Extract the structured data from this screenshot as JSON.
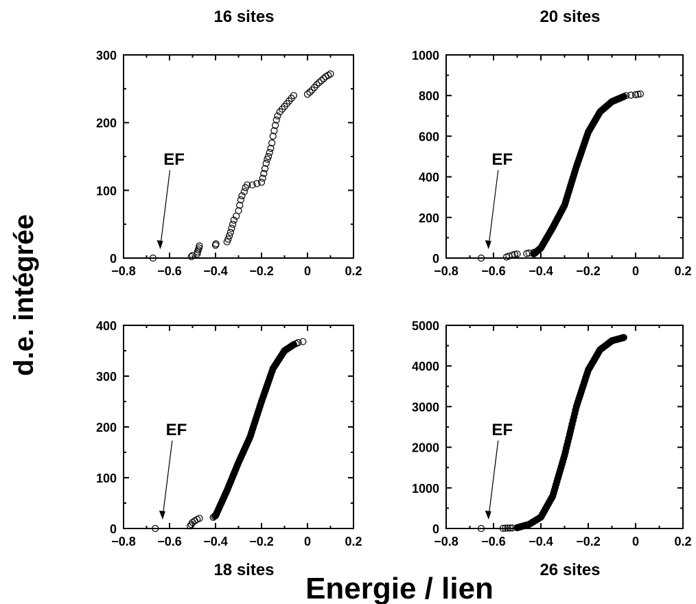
{
  "figure": {
    "ylabel": "d.e. intégrée",
    "xlabel": "Energie / lien"
  },
  "chart_data": [
    {
      "type": "scatter",
      "title": "16 sites",
      "xlim": [
        -0.8,
        0.2
      ],
      "ylim": [
        0,
        300
      ],
      "xticks": [
        "−0.8",
        "−0.6",
        "−0.4",
        "−0.2",
        "0",
        "0.2"
      ],
      "yticks": [
        "0",
        "100",
        "200",
        "300"
      ],
      "annotation": {
        "text": "EF",
        "x": -0.67,
        "y": 0
      },
      "points": [
        [
          -0.672,
          0
        ],
        [
          -0.505,
          2
        ],
        [
          -0.5,
          4
        ],
        [
          -0.48,
          6
        ],
        [
          -0.478,
          9
        ],
        [
          -0.475,
          12
        ],
        [
          -0.472,
          15
        ],
        [
          -0.47,
          18
        ],
        [
          -0.4,
          19
        ],
        [
          -0.398,
          21
        ],
        [
          -0.35,
          24
        ],
        [
          -0.345,
          28
        ],
        [
          -0.34,
          33
        ],
        [
          -0.335,
          38
        ],
        [
          -0.33,
          44
        ],
        [
          -0.325,
          50
        ],
        [
          -0.32,
          56
        ],
        [
          -0.31,
          62
        ],
        [
          -0.3,
          70
        ],
        [
          -0.295,
          78
        ],
        [
          -0.29,
          86
        ],
        [
          -0.285,
          92
        ],
        [
          -0.275,
          98
        ],
        [
          -0.27,
          104
        ],
        [
          -0.262,
          108
        ],
        [
          -0.24,
          108
        ],
        [
          -0.22,
          110
        ],
        [
          -0.2,
          112
        ],
        [
          -0.195,
          118
        ],
        [
          -0.19,
          125
        ],
        [
          -0.185,
          132
        ],
        [
          -0.18,
          140
        ],
        [
          -0.175,
          146
        ],
        [
          -0.17,
          150
        ],
        [
          -0.165,
          156
        ],
        [
          -0.16,
          162
        ],
        [
          -0.155,
          170
        ],
        [
          -0.15,
          180
        ],
        [
          -0.145,
          188
        ],
        [
          -0.14,
          196
        ],
        [
          -0.135,
          204
        ],
        [
          -0.13,
          210
        ],
        [
          -0.12,
          216
        ],
        [
          -0.11,
          220
        ],
        [
          -0.1,
          224
        ],
        [
          -0.09,
          228
        ],
        [
          -0.08,
          232
        ],
        [
          -0.07,
          236
        ],
        [
          -0.06,
          240
        ],
        [
          0.0,
          242
        ],
        [
          0.01,
          245
        ],
        [
          0.02,
          248
        ],
        [
          0.03,
          252
        ],
        [
          0.04,
          256
        ],
        [
          0.05,
          259
        ],
        [
          0.06,
          262
        ],
        [
          0.07,
          265
        ],
        [
          0.08,
          268
        ],
        [
          0.09,
          270
        ],
        [
          0.1,
          272
        ]
      ]
    },
    {
      "type": "scatter",
      "title": "20 sites",
      "xlim": [
        -0.8,
        0.2
      ],
      "ylim": [
        0,
        1000
      ],
      "xticks": [
        "−0.8",
        "−0.6",
        "−0.4",
        "−0.2",
        "0",
        "0.2"
      ],
      "yticks": [
        "0",
        "200",
        "400",
        "600",
        "800",
        "1000"
      ],
      "annotation": {
        "text": "EF",
        "x": -0.65,
        "y": 0
      },
      "curve": [
        [
          -0.43,
          20
        ],
        [
          -0.4,
          50
        ],
        [
          -0.35,
          150
        ],
        [
          -0.3,
          260
        ],
        [
          -0.25,
          450
        ],
        [
          -0.2,
          620
        ],
        [
          -0.15,
          720
        ],
        [
          -0.1,
          770
        ],
        [
          -0.05,
          795
        ]
      ],
      "points": [
        [
          -0.652,
          0
        ],
        [
          -0.545,
          5
        ],
        [
          -0.535,
          10
        ],
        [
          -0.52,
          15
        ],
        [
          -0.51,
          18
        ],
        [
          -0.5,
          20
        ],
        [
          -0.46,
          22
        ],
        [
          -0.45,
          25
        ],
        [
          -0.43,
          28
        ],
        [
          -0.05,
          795
        ],
        [
          -0.04,
          800
        ],
        [
          -0.02,
          802
        ],
        [
          0.0,
          804
        ],
        [
          0.01,
          806
        ],
        [
          0.02,
          808
        ]
      ]
    },
    {
      "type": "scatter",
      "title": "18 sites",
      "xlim": [
        -0.8,
        0.2
      ],
      "ylim": [
        0,
        400
      ],
      "xticks": [
        "−0.8",
        "−0.6",
        "−0.4",
        "−0.2",
        "0",
        "0.2"
      ],
      "yticks": [
        "0",
        "100",
        "200",
        "300",
        "400"
      ],
      "annotation": {
        "text": "EF",
        "x": -0.66,
        "y": 0
      },
      "curve": [
        [
          -0.4,
          25
        ],
        [
          -0.35,
          75
        ],
        [
          -0.3,
          130
        ],
        [
          -0.25,
          180
        ],
        [
          -0.2,
          250
        ],
        [
          -0.15,
          315
        ],
        [
          -0.1,
          350
        ],
        [
          -0.06,
          362
        ]
      ],
      "points": [
        [
          -0.662,
          0
        ],
        [
          -0.51,
          5
        ],
        [
          -0.505,
          8
        ],
        [
          -0.5,
          12
        ],
        [
          -0.49,
          15
        ],
        [
          -0.48,
          18
        ],
        [
          -0.47,
          20
        ],
        [
          -0.41,
          22
        ],
        [
          -0.405,
          24
        ],
        [
          -0.06,
          362
        ],
        [
          -0.05,
          364
        ],
        [
          -0.04,
          366
        ],
        [
          -0.02,
          368
        ]
      ]
    },
    {
      "type": "scatter",
      "title": "26 sites",
      "xlim": [
        -0.8,
        0.2
      ],
      "ylim": [
        0,
        5000
      ],
      "xticks": [
        "−0.8",
        "−0.6",
        "−0.4",
        "−0.2",
        "0",
        "0.2"
      ],
      "yticks": [
        "0",
        "1000",
        "2000",
        "3000",
        "4000",
        "5000"
      ],
      "annotation": {
        "text": "EF",
        "x": -0.65,
        "y": 0
      },
      "curve": [
        [
          -0.5,
          20
        ],
        [
          -0.45,
          100
        ],
        [
          -0.4,
          280
        ],
        [
          -0.35,
          800
        ],
        [
          -0.3,
          1800
        ],
        [
          -0.25,
          3000
        ],
        [
          -0.2,
          3900
        ],
        [
          -0.15,
          4400
        ],
        [
          -0.1,
          4620
        ],
        [
          -0.05,
          4700
        ]
      ],
      "points": [
        [
          -0.652,
          0
        ],
        [
          -0.56,
          5
        ],
        [
          -0.55,
          8
        ],
        [
          -0.54,
          10
        ],
        [
          -0.53,
          12
        ],
        [
          -0.52,
          14
        ],
        [
          -0.5,
          20
        ]
      ]
    }
  ]
}
